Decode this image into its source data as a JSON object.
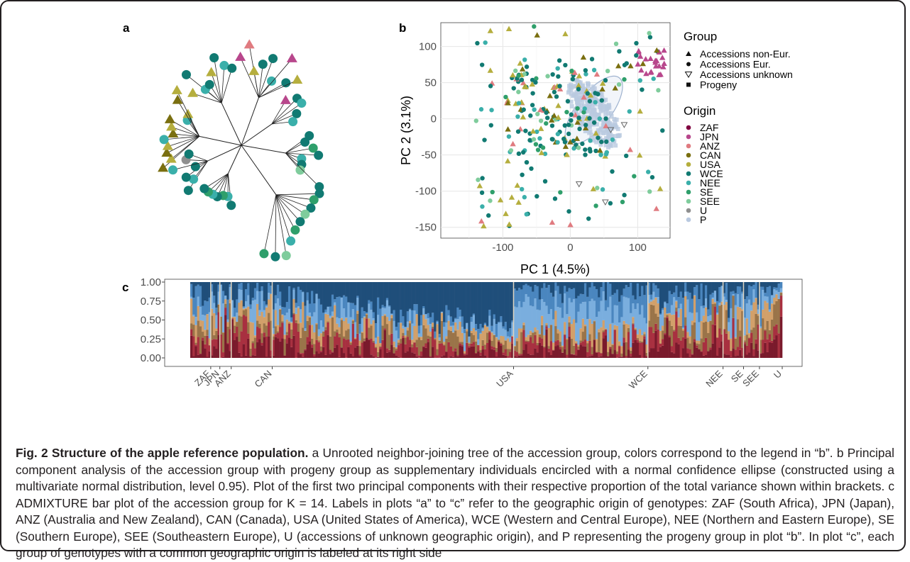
{
  "panel_labels": {
    "a": "a",
    "b": "b",
    "c": "c"
  },
  "pca": {
    "title": "",
    "xlabel": "PC 1 (4.5%)",
    "ylabel": "PC 2 (3.1%)",
    "xticks": [
      "-100",
      "0",
      "100"
    ],
    "yticks": [
      "100",
      "50",
      "0",
      "-50",
      "-100",
      "-150"
    ]
  },
  "legend": {
    "group_title": "Group",
    "groups": [
      {
        "label": "Accessions non-Eur.",
        "shape": "triangle-filled"
      },
      {
        "label": "Accessions Eur.",
        "shape": "circle-filled"
      },
      {
        "label": "Accessions unknown",
        "shape": "triangle-down-open"
      },
      {
        "label": "Progeny",
        "shape": "square-filled"
      }
    ],
    "origin_title": "Origin",
    "origins": [
      {
        "label": "ZAF",
        "color": "#800040"
      },
      {
        "label": "JPN",
        "color": "#b8478c"
      },
      {
        "label": "ANZ",
        "color": "#e07b80"
      },
      {
        "label": "CAN",
        "color": "#7a6f10"
      },
      {
        "label": "USA",
        "color": "#b5ae3e"
      },
      {
        "label": "WCE",
        "color": "#117a72"
      },
      {
        "label": "NEE",
        "color": "#3aafaa"
      },
      {
        "label": "SE",
        "color": "#2f9f6b"
      },
      {
        "label": "SEE",
        "color": "#7fcc9c"
      },
      {
        "label": "U",
        "color": "#8f8f8f"
      },
      {
        "label": "P",
        "color": "#b9c9e0"
      }
    ]
  },
  "admixture": {
    "yticks": [
      "1.00",
      "0.75",
      "0.50",
      "0.25",
      "0.00"
    ],
    "groups": [
      "ZAF",
      "JPN",
      "ANZ",
      "CAN",
      "USA",
      "WCE",
      "NEE",
      "SE",
      "SEE",
      "U"
    ],
    "colors": {
      "navy": "#1f4e7a",
      "steel": "#4a86bf",
      "sky": "#7aaede",
      "tan": "#d2a06a",
      "brown": "#9a7449",
      "red": "#a83040",
      "darkred": "#7a1a2c"
    }
  },
  "caption": {
    "title": "Fig. 2 Structure of the apple reference population.",
    "body": "a Unrooted neighbor-joining tree of the accession group, colors correspond to the legend in “b”. b Principal component analysis of the accession group with progeny group as supplementary individuals encircled with a normal confidence ellipse (constructed using a multivariate normal distribution, level 0.95). Plot of the first two principal components with their respective proportion of the total variance shown within brackets. c ADMIXTURE bar plot of the accession group for K = 14. Labels in plots “a” to “c” refer to the geographic origin of genotypes: ZAF (South Africa), JPN (Japan), ANZ (Australia and New Zealand), CAN (Canada), USA (United States of America), WCE (Western and Central Europe), NEE (Northern and Eastern Europe), SE (Southern Europe), SEE (Southeastern Europe), U (accessions of unknown geographic origin), and P representing the progeny group in plot “b”. In plot “c”, each group of genotypes with a common geographic origin is labeled at its right side"
  }
}
